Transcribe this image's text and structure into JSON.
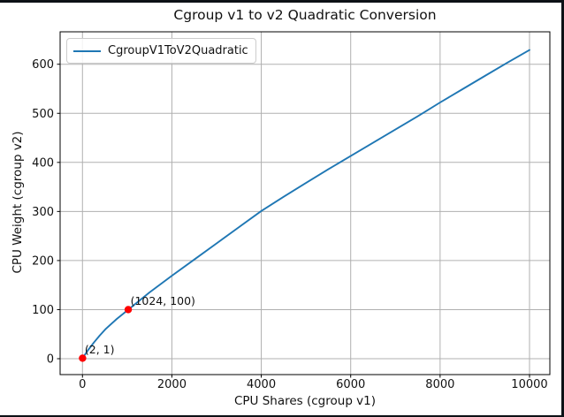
{
  "window": {
    "frame_color": "#0d1116",
    "background_color": "#ffffff"
  },
  "chart_data": {
    "type": "line",
    "title": "Cgroup v1 to v2 Quadratic Conversion",
    "xlabel": "CPU Shares (cgroup v1)",
    "ylabel": "CPU Weight (cgroup v2)",
    "legend_label": "CgroupV1ToV2Quadratic",
    "legend_position": "upper left",
    "grid": true,
    "colors": {
      "line": "#1f77b4",
      "marker": "#ff0000",
      "grid": "#b0b0b0",
      "axis": "#000000",
      "text": "#1a1a1a",
      "legend_border": "#cccccc"
    },
    "xlim": [
      -500,
      10455
    ],
    "ylim": [
      -32.4,
      666.1
    ],
    "xticks": [
      0,
      2000,
      4000,
      6000,
      8000,
      10000
    ],
    "yticks": [
      0,
      100,
      200,
      300,
      400,
      500,
      600
    ],
    "series": [
      {
        "name": "CgroupV1ToV2Quadratic",
        "x": [
          2,
          128,
          256,
          384,
          512,
          768,
          1024,
          1500,
          2000,
          2500,
          3000,
          3500,
          4000,
          4500,
          5000,
          5500,
          6000,
          6500,
          7000,
          7500,
          8000,
          8500,
          9000,
          9500,
          10000
        ],
        "y": [
          1,
          18,
          33,
          47,
          60,
          81,
          100,
          135,
          169,
          202,
          235,
          268,
          301,
          330,
          358,
          386,
          413,
          440,
          467,
          494,
          522,
          549,
          576,
          603,
          629
        ]
      }
    ],
    "annotated_points": [
      {
        "x": 2,
        "y": 1,
        "label": "(2, 1)"
      },
      {
        "x": 1024,
        "y": 100,
        "label": "(1024, 100)"
      }
    ]
  }
}
